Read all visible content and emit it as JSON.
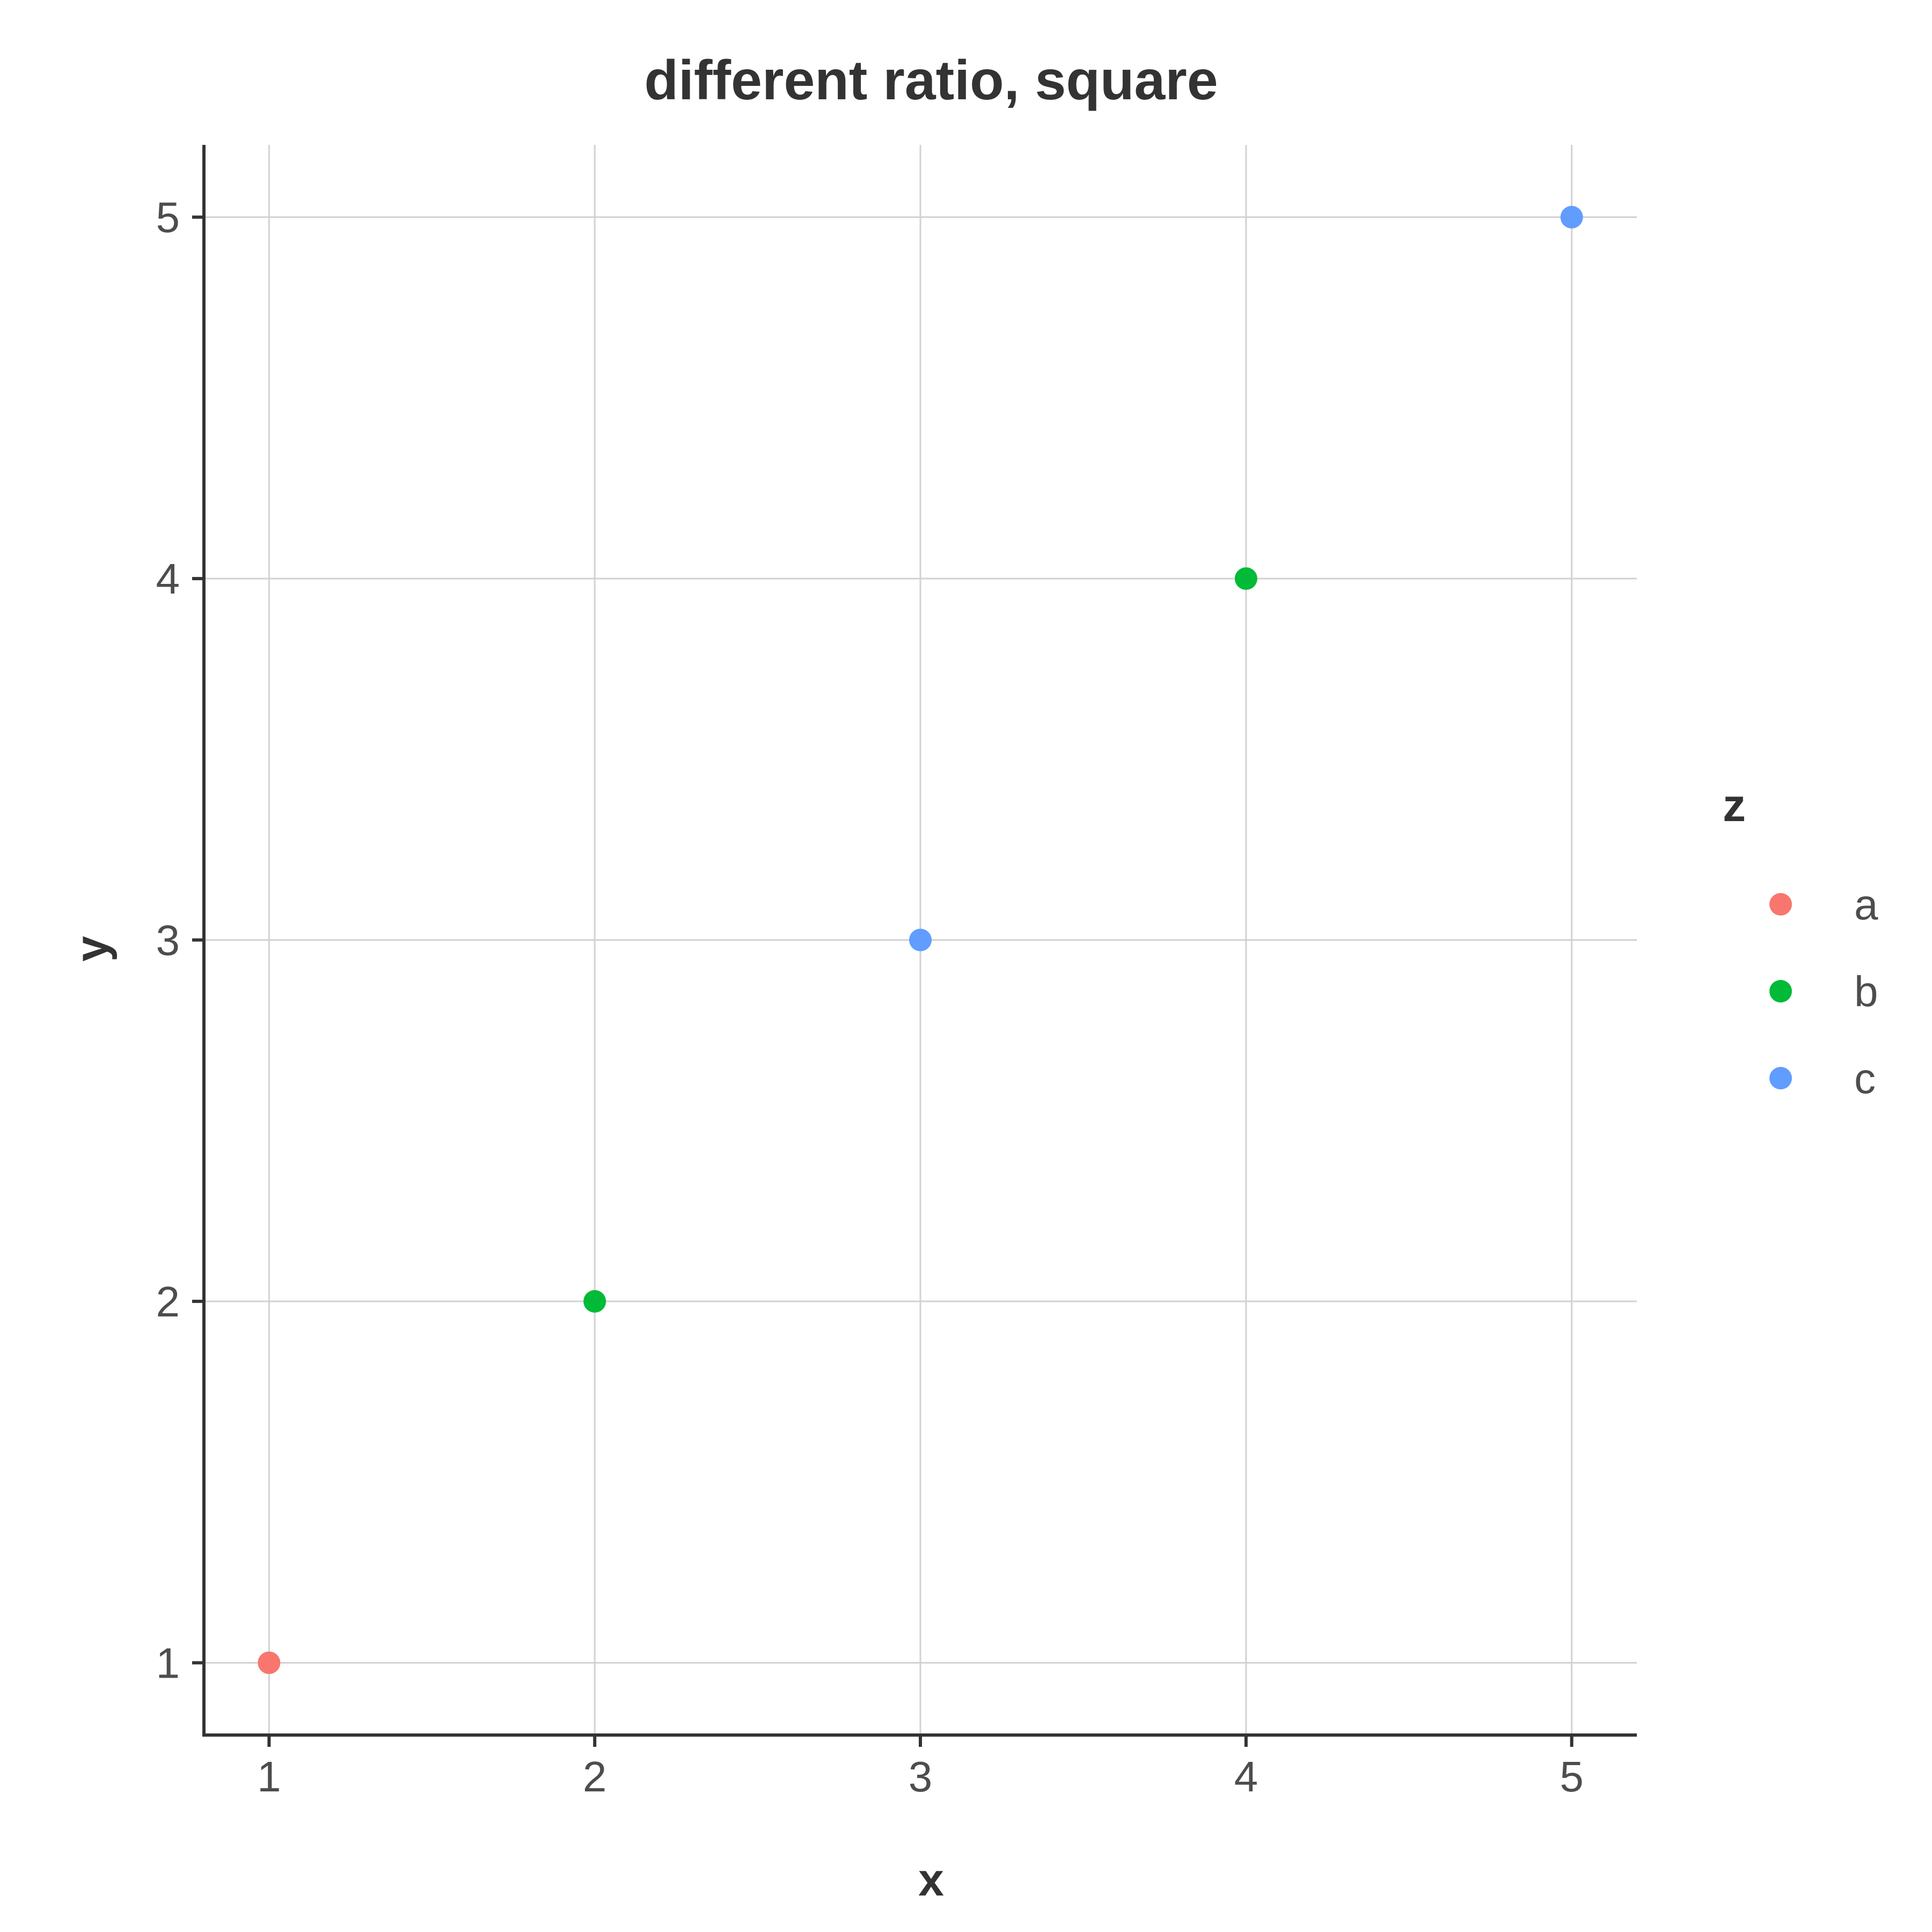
{
  "chart_data": {
    "type": "scatter",
    "title": "different ratio, square",
    "xlabel": "x",
    "ylabel": "y",
    "xlim": [
      0.8,
      5.2
    ],
    "ylim": [
      0.8,
      5.2
    ],
    "x_ticks": [
      1,
      2,
      3,
      4,
      5
    ],
    "y_ticks": [
      1,
      2,
      3,
      4,
      5
    ],
    "grid": true,
    "legend": {
      "title": "z",
      "placement": "right",
      "entries": [
        {
          "label": "a",
          "color": "#F8766D"
        },
        {
          "label": "b",
          "color": "#00BA38"
        },
        {
          "label": "c",
          "color": "#619CFF"
        }
      ]
    },
    "points": [
      {
        "x": 1,
        "y": 1,
        "z": "a"
      },
      {
        "x": 2,
        "y": 2,
        "z": "b"
      },
      {
        "x": 3,
        "y": 3,
        "z": "c"
      },
      {
        "x": 4,
        "y": 4,
        "z": "b"
      },
      {
        "x": 5,
        "y": 5,
        "z": "c"
      }
    ]
  }
}
